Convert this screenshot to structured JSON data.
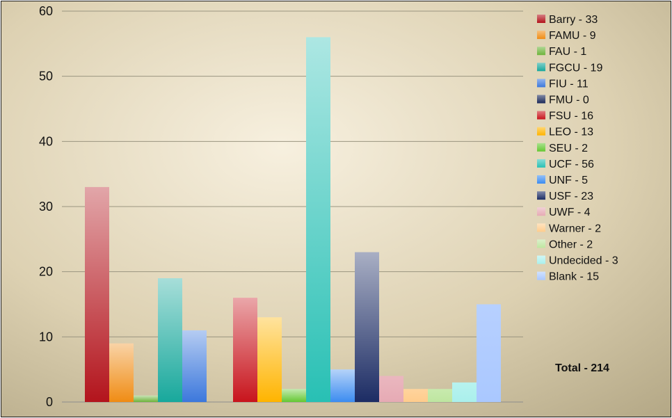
{
  "chart_data": {
    "type": "bar",
    "ylim": [
      0,
      60
    ],
    "yticks": [
      0,
      10,
      20,
      30,
      40,
      50,
      60
    ],
    "grid": true,
    "legend_position": "right",
    "groups": [
      {
        "series": [
          "Barry - 33",
          "FAMU - 9",
          "FAU - 1",
          "FGCU - 19",
          "FIU - 11",
          "FMU - 0"
        ]
      },
      {
        "series": [
          "FSU - 16",
          "LEO - 13",
          "SEU - 2",
          "UCF - 56",
          "UNF - 5",
          "USF - 23",
          "UWF - 4",
          "Warner - 2",
          "Other - 2",
          "Undecided - 3",
          "Blank - 15"
        ]
      }
    ],
    "series": [
      {
        "name": "Barry - 33",
        "value": 33,
        "color": "#b3141c",
        "fade": true
      },
      {
        "name": "FAMU - 9",
        "value": 9,
        "color": "#f08c14",
        "fade": true
      },
      {
        "name": "FAU - 1",
        "value": 1,
        "color": "#6eb43c",
        "fade": true
      },
      {
        "name": "FGCU - 19",
        "value": 19,
        "color": "#18a89c",
        "fade": true
      },
      {
        "name": "FIU - 11",
        "value": 11,
        "color": "#3c78dc",
        "fade": true
      },
      {
        "name": "FMU - 0",
        "value": 0,
        "color": "#1c2a5a",
        "fade": true
      },
      {
        "name": "FSU - 16",
        "value": 16,
        "color": "#c8141c",
        "fade": true
      },
      {
        "name": "LEO - 13",
        "value": 13,
        "color": "#ffb400",
        "fade": true
      },
      {
        "name": "SEU - 2",
        "value": 2,
        "color": "#64c832",
        "fade": true
      },
      {
        "name": "UCF - 56",
        "value": 56,
        "color": "#28c0b4",
        "fade": true
      },
      {
        "name": "UNF - 5",
        "value": 5,
        "color": "#3c8cf0",
        "fade": true
      },
      {
        "name": "USF - 23",
        "value": 23,
        "color": "#1c2c64",
        "fade": true
      },
      {
        "name": "UWF - 4",
        "value": 4,
        "color": "#e6aab4",
        "fade": false
      },
      {
        "name": "Warner - 2",
        "value": 2,
        "color": "#ffcc8c",
        "fade": false
      },
      {
        "name": "Other - 2",
        "value": 2,
        "color": "#bee6a0",
        "fade": false
      },
      {
        "name": "Undecided - 3",
        "value": 3,
        "color": "#aaf0ec",
        "fade": false
      },
      {
        "name": "Blank - 15",
        "value": 15,
        "color": "#aac8ff",
        "fade": false
      }
    ],
    "total_label": "Total - 214"
  }
}
